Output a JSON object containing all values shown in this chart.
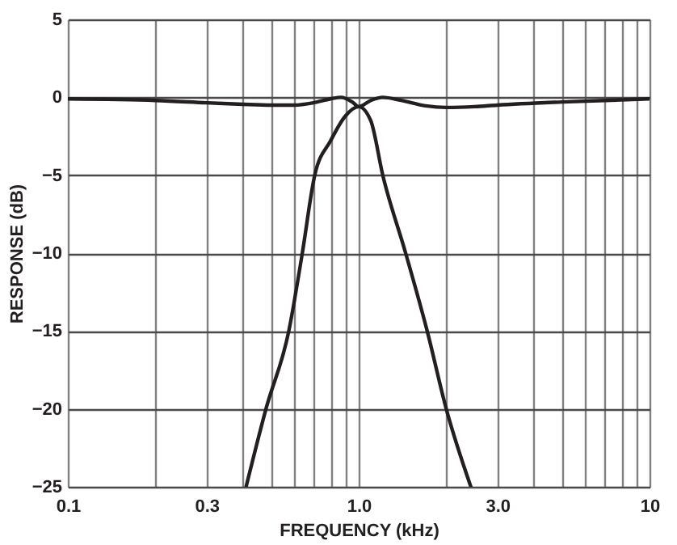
{
  "chart_data": {
    "type": "line",
    "xlabel": "FREQUENCY (kHz)",
    "ylabel": "RESPONSE (dB)",
    "log": "x",
    "grid": true,
    "marker": "none",
    "line_style": "solid",
    "xlim": [
      0.1,
      10
    ],
    "xticks": [
      0.1,
      {
        "value": 0.2,
        "label": null
      },
      {
        "value": 0.3,
        "label": "0.3"
      },
      {
        "value": 0.4,
        "label": null
      },
      {
        "value": 0.5,
        "label": null
      },
      {
        "value": 0.6,
        "label": null
      },
      {
        "value": 0.7,
        "label": null
      },
      {
        "value": 0.8,
        "label": null
      },
      {
        "value": 0.9,
        "label": null
      },
      {
        "value": 1,
        "label": "1.0"
      },
      {
        "value": 2,
        "label": null
      },
      {
        "value": 3,
        "label": "3.0"
      },
      {
        "value": 4,
        "label": null
      },
      {
        "value": 5,
        "label": null
      },
      {
        "value": 6,
        "label": null
      },
      {
        "value": 7,
        "label": null
      },
      {
        "value": 8,
        "label": null
      },
      {
        "value": 9,
        "label": null
      },
      10
    ],
    "ylim": [
      -25,
      5
    ],
    "yticks": [
      {
        "value": -25,
        "label": "−25"
      },
      {
        "value": -20,
        "label": "−20"
      },
      {
        "value": -15,
        "label": "−15"
      },
      {
        "value": -10,
        "label": "−10"
      },
      {
        "value": -5,
        "label": "−5"
      },
      0,
      5
    ],
    "series": [
      {
        "color": "#231f20",
        "x": [
          0.1,
          0.2,
          0.3,
          0.4,
          0.5,
          0.6,
          0.7,
          0.8,
          0.87,
          0.95,
          1.0,
          1.1,
          1.21,
          1.4,
          1.7,
          2.0,
          2.5,
          3,
          5,
          10
        ],
        "values": [
          -0.1,
          -0.2,
          -0.35,
          -0.45,
          -0.5,
          -0.5,
          -0.35,
          -0.1,
          0.0,
          -0.3,
          -0.6,
          -0.2,
          0.0,
          -0.2,
          -0.55,
          -0.65,
          -0.6,
          -0.5,
          -0.3,
          -0.1
        ]
      },
      {
        "color": "#231f20",
        "x": [
          0.41,
          0.48,
          0.575,
          0.64,
          0.706,
          0.8,
          0.9,
          1.0,
          1.1,
          1.21,
          1.45,
          1.72,
          2.0,
          2.43
        ],
        "values": [
          -25,
          -20,
          -15,
          -10,
          -5,
          -2.8,
          -1.2,
          -0.6,
          -1.5,
          -5,
          -10,
          -15,
          -20,
          -25
        ]
      }
    ]
  }
}
